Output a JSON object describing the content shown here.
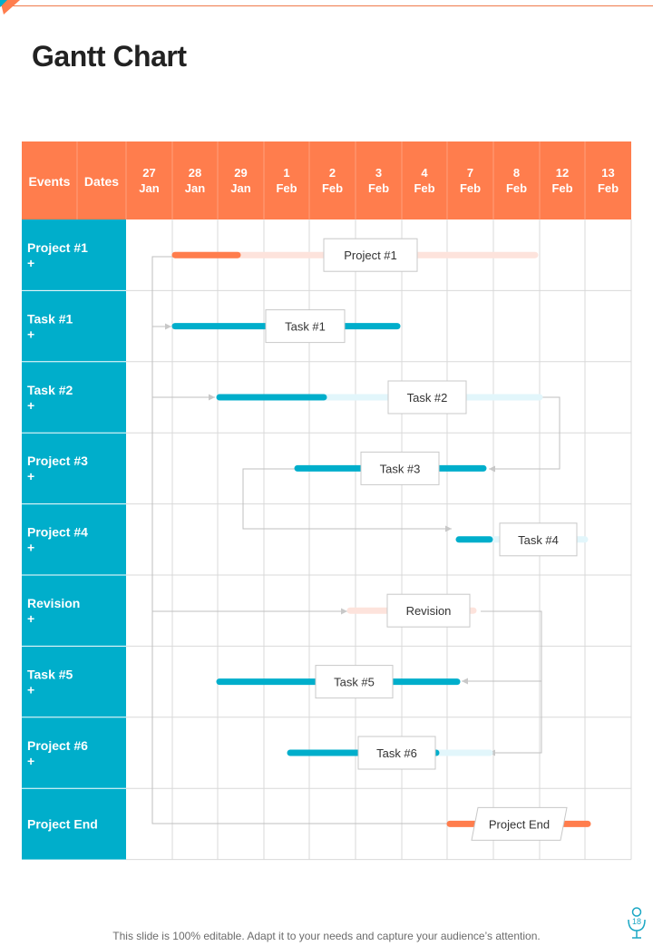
{
  "page": {
    "title": "Gantt Chart",
    "footer": "This slide is 100% editable. Adapt it to your needs and capture your audience’s attention.",
    "page_number": "18"
  },
  "colors": {
    "accent_orange": "#ff7d4d",
    "teal": "#00aecb",
    "light_teal": "#e2f6fb",
    "light_orange": "#fde3dc",
    "grid": "#d9d9d9",
    "connector": "#bfbfbf"
  },
  "header": {
    "events_label": "Events",
    "dates_label": "Dates",
    "dates": [
      [
        "27",
        "Jan"
      ],
      [
        "28",
        "Jan"
      ],
      [
        "29",
        "Jan"
      ],
      [
        "1",
        "Feb"
      ],
      [
        "2",
        "Feb"
      ],
      [
        "3",
        "Feb"
      ],
      [
        "4",
        "Feb"
      ],
      [
        "7",
        "Feb"
      ],
      [
        "8",
        "Feb"
      ],
      [
        "12",
        "Feb"
      ],
      [
        "13",
        "Feb"
      ]
    ]
  },
  "rows": [
    {
      "label": "Project #1",
      "plus": "+",
      "bar_label": "Project #1",
      "color": "orange"
    },
    {
      "label": "Task #1",
      "plus": "+",
      "bar_label": "Task #1",
      "color": "teal"
    },
    {
      "label": "Task #2",
      "plus": "+",
      "bar_label": "Task #2",
      "color": "teal"
    },
    {
      "label": "Project #3",
      "plus": "+",
      "bar_label": "Task #3",
      "color": "teal"
    },
    {
      "label": "Project #4",
      "plus": "+",
      "bar_label": "Task #4",
      "color": "teal"
    },
    {
      "label": "Revision",
      "plus": "+",
      "bar_label": "Revision",
      "color": "orange"
    },
    {
      "label": "Task #5",
      "plus": "+",
      "bar_label": "Task #5",
      "color": "teal"
    },
    {
      "label": "Project #6",
      "plus": "+",
      "bar_label": "Task #6",
      "color": "teal"
    },
    {
      "label": "Project End",
      "plus": "",
      "bar_label": "Project End",
      "color": "orange"
    }
  ]
}
